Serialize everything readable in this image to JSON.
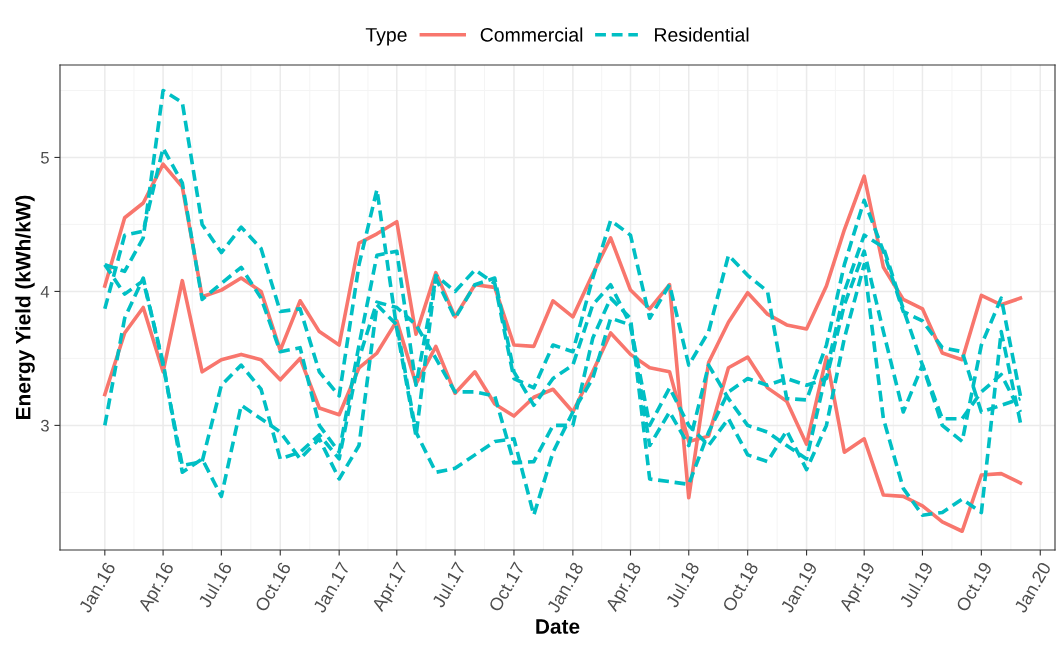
{
  "chart_data": {
    "type": "line",
    "xlabel": "Date",
    "ylabel": "Energy Yield (kWh/kW)",
    "legend_title": "Type",
    "legend": "top",
    "x": [
      "2016-01",
      "2016-02",
      "2016-03",
      "2016-04",
      "2016-05",
      "2016-06",
      "2016-07",
      "2016-08",
      "2016-09",
      "2016-10",
      "2016-11",
      "2016-12",
      "2017-01",
      "2017-02",
      "2017-03",
      "2017-04",
      "2017-05",
      "2017-06",
      "2017-07",
      "2017-08",
      "2017-09",
      "2017-10",
      "2017-11",
      "2017-12",
      "2018-01",
      "2018-02",
      "2018-03",
      "2018-04",
      "2018-05",
      "2018-06",
      "2018-07",
      "2018-08",
      "2018-09",
      "2018-10",
      "2018-11",
      "2018-12",
      "2019-01",
      "2019-02",
      "2019-03",
      "2019-04",
      "2019-05",
      "2019-06",
      "2019-07",
      "2019-08",
      "2019-09",
      "2019-10",
      "2019-11",
      "2019-12"
    ],
    "series": [
      {
        "name": "Commercial",
        "color": "#f8766d",
        "line_style": "solid",
        "values": [
          4.04,
          4.55,
          4.66,
          4.95,
          4.78,
          3.96,
          4.01,
          4.1,
          4.0,
          3.56,
          3.93,
          3.7,
          3.6,
          4.36,
          4.43,
          4.52,
          3.68,
          4.14,
          3.81,
          4.05,
          4.03,
          3.6,
          3.59,
          3.93,
          3.81,
          4.13,
          4.4,
          4.01,
          3.87,
          4.05,
          2.46,
          3.47,
          3.77,
          3.99,
          3.83,
          3.75,
          3.72,
          4.04,
          4.46,
          4.86,
          4.18,
          3.94,
          3.87,
          3.54,
          3.49,
          3.97,
          3.9,
          3.95
        ]
      },
      {
        "color": "#f8766d",
        "line_style": "solid",
        "values": [
          3.23,
          3.69,
          3.88,
          3.4,
          4.08,
          3.4,
          3.49,
          3.53,
          3.49,
          3.34,
          3.5,
          3.13,
          3.08,
          3.43,
          3.54,
          3.78,
          3.31,
          3.59,
          3.24,
          3.4,
          3.16,
          3.07,
          3.21,
          3.27,
          3.1,
          3.4,
          3.69,
          3.53,
          3.43,
          3.4,
          2.88,
          2.92,
          3.43,
          3.51,
          3.28,
          3.18,
          2.86,
          3.51,
          2.8,
          2.9,
          2.48,
          2.47,
          2.4,
          2.28,
          2.21,
          2.63,
          2.64,
          2.57
        ]
      },
      {
        "name": "Residential",
        "color": "#00bfc4",
        "line_style": "dashed",
        "values": [
          4.2,
          4.15,
          4.4,
          5.5,
          5.41,
          4.5,
          4.29,
          4.48,
          4.32,
          3.85,
          3.87,
          3.4,
          3.22,
          4.2,
          4.76,
          3.72,
          2.92,
          4.12,
          4.0,
          4.16,
          4.06,
          3.35,
          3.28,
          3.6,
          3.55,
          4.1,
          4.53,
          4.42,
          3.8,
          4.05,
          3.45,
          3.7,
          4.27,
          4.12,
          4.0,
          3.2,
          3.19,
          3.6,
          4.2,
          4.68,
          4.3,
          3.85,
          3.78,
          3.58,
          3.55,
          3.1,
          3.15,
          3.2
        ]
      },
      {
        "color": "#00bfc4",
        "line_style": "dashed",
        "values": [
          3.87,
          4.42,
          4.45,
          5.07,
          4.81,
          3.94,
          4.06,
          4.18,
          3.95,
          3.55,
          3.58,
          3.0,
          2.8,
          3.6,
          4.27,
          4.3,
          3.3,
          4.1,
          3.8,
          4.05,
          4.1,
          3.4,
          3.15,
          3.35,
          3.45,
          3.9,
          4.05,
          3.75,
          2.85,
          3.1,
          2.85,
          3.45,
          3.2,
          3.0,
          2.95,
          2.85,
          2.75,
          3.4,
          4.0,
          4.42,
          4.33,
          3.87,
          3.45,
          3.0,
          2.88,
          3.6,
          3.95,
          3.22
        ]
      },
      {
        "color": "#00bfc4",
        "line_style": "dashed",
        "values": [
          3.0,
          3.8,
          4.1,
          3.45,
          2.7,
          2.73,
          3.3,
          3.45,
          3.27,
          2.75,
          2.8,
          2.93,
          2.75,
          3.5,
          3.92,
          3.88,
          3.75,
          3.5,
          3.25,
          3.25,
          3.22,
          2.72,
          2.73,
          3.0,
          3.0,
          3.65,
          3.95,
          3.8,
          2.6,
          2.58,
          2.56,
          2.95,
          3.25,
          3.35,
          3.3,
          3.35,
          3.3,
          3.35,
          3.9,
          4.3,
          3.7,
          3.1,
          3.45,
          3.05,
          3.05,
          3.25,
          3.38,
          3.1
        ]
      },
      {
        "color": "#00bfc4",
        "line_style": "dashed",
        "values": [
          4.2,
          3.98,
          4.08,
          3.47,
          2.65,
          2.75,
          2.47,
          3.15,
          3.05,
          2.95,
          2.75,
          2.9,
          2.6,
          2.85,
          3.9,
          3.75,
          2.95,
          2.65,
          2.68,
          2.78,
          2.88,
          2.9,
          2.33,
          2.8,
          3.1,
          3.35,
          3.8,
          3.75,
          3.0,
          3.28,
          3.0,
          2.85,
          3.05,
          2.78,
          2.73,
          2.96,
          2.67,
          3.0,
          3.65,
          4.2,
          3.05,
          2.53,
          2.33,
          2.35,
          2.45,
          2.35,
          3.7,
          3.02
        ]
      }
    ],
    "xlim": [
      "2015-10-23",
      "2020-01-24"
    ],
    "ylim": [
      2.07,
      5.69
    ],
    "yticks": [
      3,
      4,
      5
    ],
    "xticks": [
      {
        "value": "2016-01",
        "label": "Jan.16"
      },
      {
        "value": "2016-04",
        "label": "Apr.16"
      },
      {
        "value": "2016-07",
        "label": "Jul.16"
      },
      {
        "value": "2016-10",
        "label": "Oct.16"
      },
      {
        "value": "2017-01",
        "label": "Jan.17"
      },
      {
        "value": "2017-04",
        "label": "Apr.17"
      },
      {
        "value": "2017-07",
        "label": "Jul.17"
      },
      {
        "value": "2017-10",
        "label": "Oct.17"
      },
      {
        "value": "2018-01",
        "label": "Jan.18"
      },
      {
        "value": "2018-04",
        "label": "Apr.18"
      },
      {
        "value": "2018-07",
        "label": "Jul.18"
      },
      {
        "value": "2018-10",
        "label": "Oct.18"
      },
      {
        "value": "2019-01",
        "label": "Jan.19"
      },
      {
        "value": "2019-04",
        "label": "Apr.19"
      },
      {
        "value": "2019-07",
        "label": "Jul.19"
      },
      {
        "value": "2019-10",
        "label": "Oct.19"
      },
      {
        "value": "2020-01",
        "label": "Jan.20"
      }
    ],
    "grid": true
  }
}
